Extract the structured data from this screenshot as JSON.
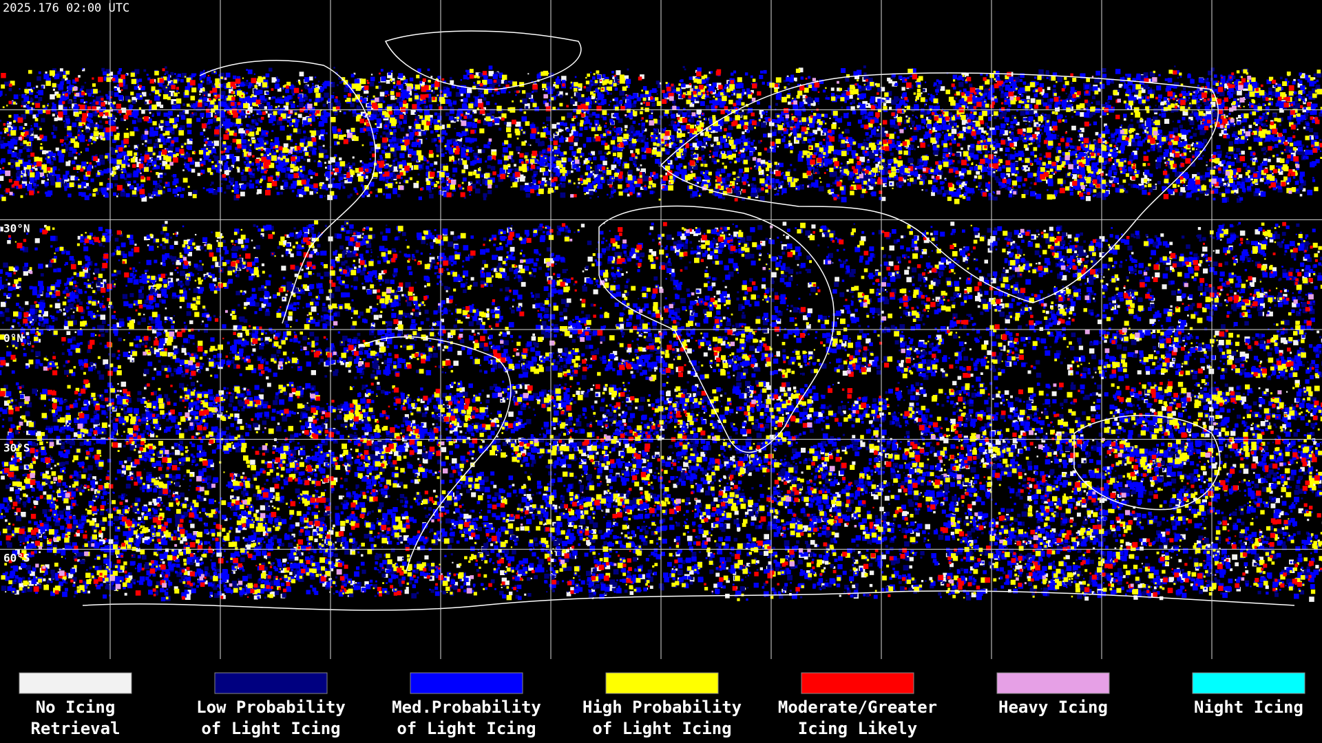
{
  "header": {
    "timestamp": "2025.176 02:00 UTC"
  },
  "map": {
    "latitude_labels": [
      "30°N",
      "0°N",
      "30°S",
      "60°S"
    ]
  },
  "legend": {
    "items": [
      {
        "lines": [
          "No Icing",
          "Retrieval"
        ],
        "color": "#f2f2f2"
      },
      {
        "lines": [
          "Low Probability",
          "of Light Icing"
        ],
        "color": "#000080"
      },
      {
        "lines": [
          "Med.Probability",
          "of Light Icing"
        ],
        "color": "#0000ff"
      },
      {
        "lines": [
          "High Probability",
          "of Light Icing"
        ],
        "color": "#ffff00"
      },
      {
        "lines": [
          "Moderate/Greater",
          "Icing Likely"
        ],
        "color": "#ff0000"
      },
      {
        "lines": [
          "Heavy Icing"
        ],
        "color": "#e6a0e6"
      },
      {
        "lines": [
          "Night Icing"
        ],
        "color": "#00ffff"
      }
    ]
  }
}
